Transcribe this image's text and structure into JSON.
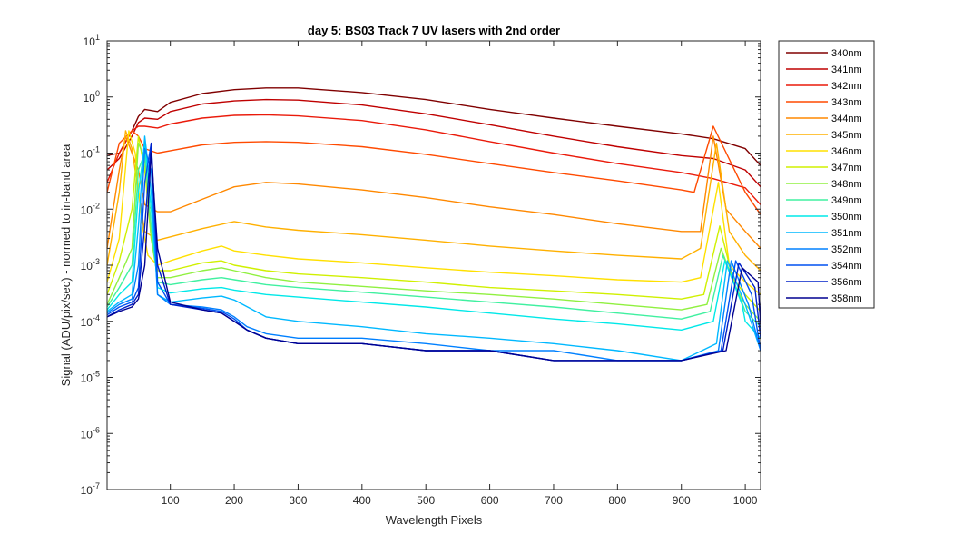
{
  "chart_data": {
    "type": "line",
    "title": "day 5: BS03  Track 7 UV lasers with 2nd order",
    "xlabel": "Wavelength Pixels",
    "ylabel": "Signal (ADU/pix/sec) - normed to in-band area",
    "xlim": [
      1,
      1024
    ],
    "ylim": [
      1e-07,
      10
    ],
    "yscale": "log",
    "grid": false,
    "legend_position": "outside-right",
    "x_ticks": [
      {
        "value": 100,
        "label": "100"
      },
      {
        "value": 200,
        "label": "200"
      },
      {
        "value": 300,
        "label": "300"
      },
      {
        "value": 400,
        "label": "400"
      },
      {
        "value": 500,
        "label": "500"
      },
      {
        "value": 600,
        "label": "600"
      },
      {
        "value": 700,
        "label": "700"
      },
      {
        "value": 800,
        "label": "800"
      },
      {
        "value": 900,
        "label": "900"
      },
      {
        "value": 1000,
        "label": "1000"
      }
    ],
    "y_ticks": [
      {
        "value": 1e-07,
        "base": "10",
        "exp": "-7"
      },
      {
        "value": 1e-06,
        "base": "10",
        "exp": "-6"
      },
      {
        "value": 1e-05,
        "base": "10",
        "exp": "-5"
      },
      {
        "value": 0.0001,
        "base": "10",
        "exp": "-4"
      },
      {
        "value": 0.001,
        "base": "10",
        "exp": "-3"
      },
      {
        "value": 0.01,
        "base": "10",
        "exp": "-2"
      },
      {
        "value": 0.1,
        "base": "10",
        "exp": "-1"
      },
      {
        "value": 1,
        "base": "10",
        "exp": "0"
      },
      {
        "value": 10,
        "base": "10",
        "exp": "1"
      }
    ],
    "series": [
      {
        "name": "340nm",
        "color": "#800000",
        "x": [
          1,
          20,
          40,
          50,
          60,
          80,
          100,
          150,
          200,
          250,
          300,
          400,
          500,
          600,
          700,
          800,
          900,
          950,
          1000,
          1024
        ],
        "y": [
          0.09,
          0.1,
          0.25,
          0.45,
          0.6,
          0.55,
          0.8,
          1.15,
          1.35,
          1.45,
          1.45,
          1.2,
          0.9,
          0.6,
          0.42,
          0.3,
          0.22,
          0.18,
          0.12,
          0.06
        ]
      },
      {
        "name": "341nm",
        "color": "#bf0000",
        "x": [
          1,
          20,
          40,
          50,
          60,
          80,
          100,
          150,
          200,
          250,
          300,
          400,
          500,
          600,
          700,
          800,
          900,
          950,
          1000,
          1024
        ],
        "y": [
          0.05,
          0.08,
          0.2,
          0.35,
          0.42,
          0.4,
          0.55,
          0.75,
          0.85,
          0.9,
          0.88,
          0.72,
          0.5,
          0.32,
          0.2,
          0.13,
          0.09,
          0.08,
          0.05,
          0.025
        ]
      },
      {
        "name": "342nm",
        "color": "#ea1a0a",
        "x": [
          1,
          20,
          40,
          50,
          60,
          80,
          100,
          150,
          200,
          250,
          300,
          400,
          500,
          600,
          700,
          800,
          900,
          950,
          1000,
          1024
        ],
        "y": [
          0.03,
          0.1,
          0.25,
          0.3,
          0.3,
          0.28,
          0.33,
          0.42,
          0.47,
          0.48,
          0.46,
          0.38,
          0.26,
          0.16,
          0.1,
          0.065,
          0.045,
          0.035,
          0.024,
          0.012
        ]
      },
      {
        "name": "343nm",
        "color": "#ff4a00",
        "x": [
          1,
          20,
          40,
          50,
          60,
          80,
          100,
          150,
          200,
          250,
          300,
          400,
          500,
          600,
          700,
          800,
          900,
          920,
          950,
          1000,
          1024
        ],
        "y": [
          0.02,
          0.15,
          0.25,
          0.2,
          0.12,
          0.1,
          0.11,
          0.14,
          0.155,
          0.16,
          0.155,
          0.13,
          0.095,
          0.065,
          0.045,
          0.032,
          0.022,
          0.02,
          0.3,
          0.02,
          0.008
        ]
      },
      {
        "name": "344nm",
        "color": "#ff8800",
        "x": [
          1,
          20,
          30,
          40,
          50,
          60,
          80,
          100,
          150,
          200,
          250,
          300,
          400,
          500,
          600,
          700,
          800,
          900,
          930,
          950,
          970,
          1000,
          1024
        ],
        "y": [
          0.002,
          0.05,
          0.2,
          0.1,
          0.05,
          0.012,
          0.009,
          0.009,
          0.015,
          0.025,
          0.03,
          0.028,
          0.022,
          0.016,
          0.011,
          0.008,
          0.0055,
          0.004,
          0.004,
          0.2,
          0.01,
          0.004,
          0.002
        ]
      },
      {
        "name": "345nm",
        "color": "#ffb000",
        "x": [
          1,
          20,
          30,
          40,
          50,
          60,
          80,
          100,
          150,
          200,
          250,
          300,
          400,
          500,
          600,
          700,
          800,
          900,
          930,
          955,
          975,
          1000,
          1024
        ],
        "y": [
          0.001,
          0.02,
          0.25,
          0.12,
          0.02,
          0.004,
          0.0028,
          0.0032,
          0.0045,
          0.006,
          0.0048,
          0.0042,
          0.0035,
          0.0028,
          0.0022,
          0.0018,
          0.0015,
          0.0013,
          0.002,
          0.15,
          0.004,
          0.0015,
          0.0008
        ]
      },
      {
        "name": "346nm",
        "color": "#ffe000",
        "x": [
          1,
          20,
          35,
          45,
          55,
          65,
          80,
          100,
          150,
          180,
          200,
          250,
          300,
          400,
          500,
          600,
          700,
          800,
          900,
          930,
          958,
          975,
          1000,
          1024
        ],
        "y": [
          0.0005,
          0.003,
          0.25,
          0.1,
          0.006,
          0.0015,
          0.001,
          0.0012,
          0.0018,
          0.0022,
          0.0018,
          0.0015,
          0.0013,
          0.0011,
          0.0009,
          0.00075,
          0.00065,
          0.00055,
          0.0005,
          0.0006,
          0.03,
          0.001,
          0.0005,
          0.0003
        ]
      },
      {
        "name": "347nm",
        "color": "#d0f000",
        "x": [
          1,
          20,
          40,
          50,
          60,
          70,
          80,
          100,
          150,
          180,
          200,
          250,
          300,
          400,
          500,
          600,
          700,
          800,
          900,
          935,
          960,
          980,
          1000,
          1024
        ],
        "y": [
          0.0003,
          0.0012,
          0.01,
          0.2,
          0.05,
          0.003,
          0.0008,
          0.0008,
          0.0011,
          0.0012,
          0.001,
          0.0008,
          0.0007,
          0.0006,
          0.0005,
          0.0004,
          0.00035,
          0.0003,
          0.00025,
          0.0003,
          0.005,
          0.0006,
          0.0003,
          0.00015
        ]
      },
      {
        "name": "348nm",
        "color": "#90f040",
        "x": [
          1,
          20,
          40,
          50,
          60,
          70,
          80,
          100,
          150,
          180,
          200,
          250,
          300,
          400,
          500,
          600,
          700,
          800,
          900,
          940,
          962,
          985,
          1000,
          1024
        ],
        "y": [
          0.0002,
          0.0006,
          0.002,
          0.15,
          0.08,
          0.003,
          0.0006,
          0.0006,
          0.0008,
          0.0009,
          0.0008,
          0.0006,
          0.0005,
          0.00042,
          0.00035,
          0.0003,
          0.00025,
          0.0002,
          0.00016,
          0.0002,
          0.002,
          0.0004,
          0.0002,
          0.0001
        ]
      },
      {
        "name": "349nm",
        "color": "#40f0a0",
        "x": [
          1,
          20,
          40,
          50,
          60,
          70,
          80,
          100,
          150,
          180,
          200,
          250,
          300,
          400,
          500,
          600,
          700,
          800,
          900,
          945,
          965,
          990,
          1000,
          1024
        ],
        "y": [
          0.00018,
          0.0004,
          0.001,
          0.05,
          0.1,
          0.005,
          0.0005,
          0.00045,
          0.00055,
          0.0006,
          0.00055,
          0.00045,
          0.0004,
          0.00033,
          0.00027,
          0.00022,
          0.00018,
          0.00014,
          0.00011,
          0.00015,
          0.0015,
          0.0003,
          0.00015,
          8e-05
        ]
      },
      {
        "name": "350nm",
        "color": "#00e8e8",
        "x": [
          1,
          20,
          40,
          50,
          60,
          70,
          80,
          100,
          150,
          180,
          200,
          250,
          300,
          400,
          500,
          600,
          700,
          800,
          900,
          950,
          968,
          995,
          1000,
          1024
        ],
        "y": [
          0.00016,
          0.0003,
          0.0005,
          0.02,
          0.15,
          0.01,
          0.0004,
          0.00032,
          0.00038,
          0.0004,
          0.00036,
          0.0003,
          0.00027,
          0.00022,
          0.00018,
          0.00014,
          0.00011,
          9e-05,
          7e-05,
          0.0001,
          0.0012,
          0.0002,
          0.0001,
          5e-05
        ]
      },
      {
        "name": "351nm",
        "color": "#00b8ff",
        "x": [
          1,
          20,
          40,
          50,
          60,
          70,
          80,
          100,
          150,
          180,
          200,
          250,
          300,
          400,
          500,
          600,
          700,
          800,
          900,
          955,
          972,
          1000,
          1024
        ],
        "y": [
          0.00015,
          0.00022,
          0.0003,
          0.005,
          0.2,
          0.02,
          0.0003,
          0.00022,
          0.00026,
          0.00028,
          0.00024,
          0.00012,
          0.0001,
          8e-05,
          6e-05,
          5e-05,
          4e-05,
          3e-05,
          2e-05,
          4e-05,
          0.0012,
          0.0002,
          3e-05
        ]
      },
      {
        "name": "352nm",
        "color": "#0080ff",
        "x": [
          1,
          20,
          40,
          50,
          60,
          70,
          80,
          100,
          150,
          180,
          200,
          220,
          250,
          300,
          400,
          500,
          600,
          700,
          800,
          900,
          958,
          978,
          1005,
          1024
        ],
        "y": [
          0.00014,
          0.0002,
          0.00025,
          0.001,
          0.12,
          0.05,
          0.0003,
          0.0002,
          0.00018,
          0.00016,
          0.00012,
          8e-05,
          6e-05,
          5e-05,
          5e-05,
          4e-05,
          3e-05,
          3e-05,
          2e-05,
          2e-05,
          3e-05,
          0.0012,
          0.0002,
          3e-05
        ]
      },
      {
        "name": "354nm",
        "color": "#0050f0",
        "x": [
          1,
          20,
          40,
          50,
          60,
          70,
          80,
          100,
          150,
          180,
          200,
          220,
          250,
          300,
          400,
          500,
          600,
          700,
          800,
          900,
          962,
          985,
          1010,
          1024
        ],
        "y": [
          0.00013,
          0.00018,
          0.00022,
          0.0004,
          0.03,
          0.15,
          0.0005,
          0.0002,
          0.00017,
          0.00015,
          0.00011,
          7e-05,
          5e-05,
          4e-05,
          4e-05,
          3e-05,
          3e-05,
          2e-05,
          2e-05,
          2e-05,
          3e-05,
          0.0012,
          0.0003,
          3e-05
        ]
      },
      {
        "name": "356nm",
        "color": "#0020c8",
        "x": [
          1,
          20,
          40,
          50,
          60,
          70,
          80,
          100,
          150,
          180,
          200,
          220,
          250,
          300,
          400,
          500,
          600,
          700,
          800,
          900,
          965,
          990,
          1015,
          1024
        ],
        "y": [
          0.00012,
          0.00016,
          0.0002,
          0.0003,
          0.005,
          0.15,
          0.001,
          0.0002,
          0.00016,
          0.00014,
          0.0001,
          7e-05,
          5e-05,
          4e-05,
          4e-05,
          3e-05,
          3e-05,
          2e-05,
          2e-05,
          2e-05,
          3e-05,
          0.0011,
          0.0004,
          5e-05
        ]
      },
      {
        "name": "358nm",
        "color": "#000090",
        "x": [
          1,
          20,
          40,
          50,
          60,
          70,
          80,
          100,
          150,
          180,
          200,
          220,
          250,
          300,
          400,
          500,
          600,
          700,
          800,
          900,
          970,
          995,
          1020,
          1024
        ],
        "y": [
          0.00012,
          0.00015,
          0.00018,
          0.00025,
          0.001,
          0.1,
          0.002,
          0.00022,
          0.00016,
          0.00014,
          0.0001,
          7e-05,
          5e-05,
          4e-05,
          4e-05,
          3e-05,
          3e-05,
          2e-05,
          2e-05,
          2e-05,
          3e-05,
          0.0009,
          0.0005,
          8e-05
        ]
      }
    ]
  }
}
